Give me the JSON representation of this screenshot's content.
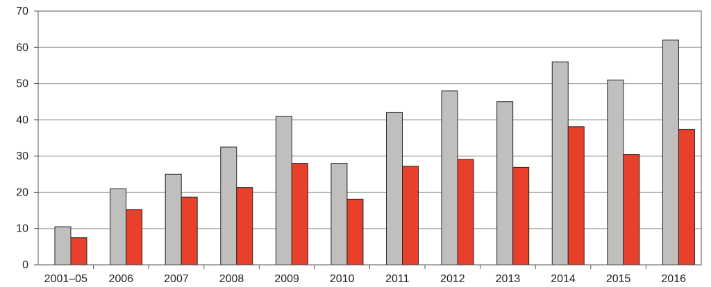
{
  "chart_data": {
    "type": "bar",
    "title": "",
    "xlabel": "",
    "ylabel": "",
    "ylim": [
      0,
      70
    ],
    "yticks": [
      0,
      10,
      20,
      30,
      40,
      50,
      60,
      70
    ],
    "grid": true,
    "legend": "none",
    "categories": [
      "2001–05",
      "2006",
      "2007",
      "2008",
      "2009",
      "2010",
      "2011",
      "2012",
      "2013",
      "2014",
      "2015",
      "2016"
    ],
    "series": [
      {
        "color": "#c0bfbd",
        "values": [
          10.5,
          21,
          25,
          32.5,
          41,
          28,
          42,
          48,
          45,
          56,
          51,
          62
        ]
      },
      {
        "color": "#e8402a",
        "values": [
          7.5,
          15.2,
          18.7,
          21.3,
          28,
          18.1,
          27.2,
          29.1,
          26.9,
          38.1,
          30.5,
          37.4
        ]
      }
    ]
  }
}
